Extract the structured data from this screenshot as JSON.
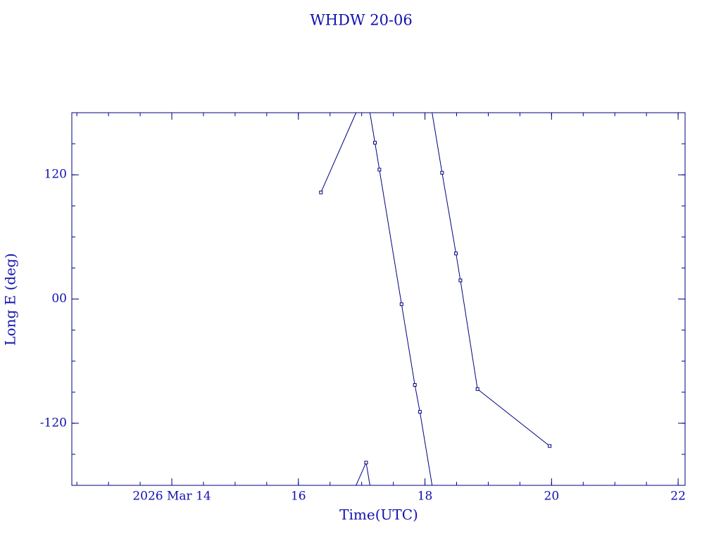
{
  "chart_data": {
    "type": "line",
    "title": "WHDW 20-06",
    "x_label": "Time(UTC)",
    "y_label": "Long E (deg)",
    "xlim": [
      12.42,
      22.11
    ],
    "ylim": [
      -180,
      180
    ],
    "xticks": [
      {
        "value": 14,
        "label": "2026 Mar 14"
      },
      16,
      18,
      20,
      22
    ],
    "yticks": [
      -120,
      {
        "value": 0,
        "label": "00"
      },
      120
    ],
    "wrap": true,
    "series": [
      {
        "color": "#000080",
        "x": [
          16.356,
          17.07,
          17.21,
          17.28,
          17.63,
          17.84,
          17.92,
          18.27,
          18.49,
          18.56,
          18.83,
          19.97
        ],
        "values": [
          103,
          -158,
          151,
          125,
          -5,
          -83,
          -109,
          122,
          44,
          18,
          -87,
          -142
        ]
      }
    ]
  }
}
